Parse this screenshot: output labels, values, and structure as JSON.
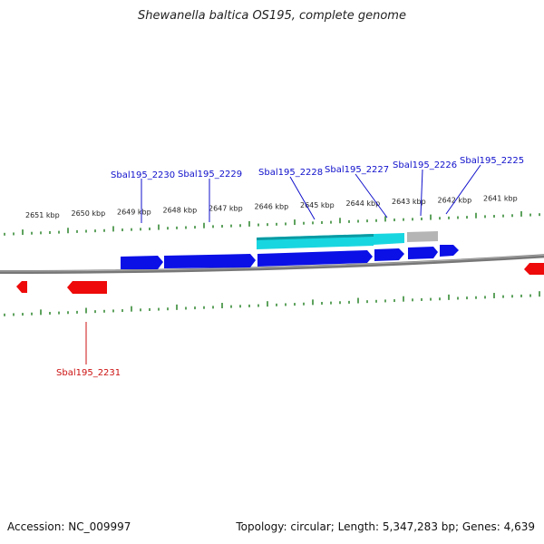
{
  "title": "Shewanella baltica OS195, complete genome",
  "footer": {
    "accession": "Accession: NC_009997",
    "summary": "Topology: circular; Length: 5,347,283 bp; Genes: 4,639"
  },
  "colors": {
    "forward_gene": "#0a10e6",
    "reverse_gene": "#ee0a0a",
    "rna_feature": "#18d6e0",
    "grey_feature": "#b0b0b0",
    "forward_label": "#1010cc",
    "reverse_label": "#cc1010",
    "tick": "#1a7a1a",
    "backbone": "#777777"
  },
  "scale_labels": [
    "2651 kbp",
    "2650 kbp",
    "2649 kbp",
    "2648 kbp",
    "2647 kbp",
    "2646 kbp",
    "2645 kbp",
    "2644 kbp",
    "2643 kbp",
    "2642 kbp",
    "2641 kbp"
  ],
  "gene_labels_forward": [
    "Sbal195_2230",
    "Sbal195_2229",
    "Sbal195_2228",
    "Sbal195_2227",
    "Sbal195_2226",
    "Sbal195_2225"
  ],
  "gene_labels_reverse": [
    "Sbal195_2231"
  ]
}
